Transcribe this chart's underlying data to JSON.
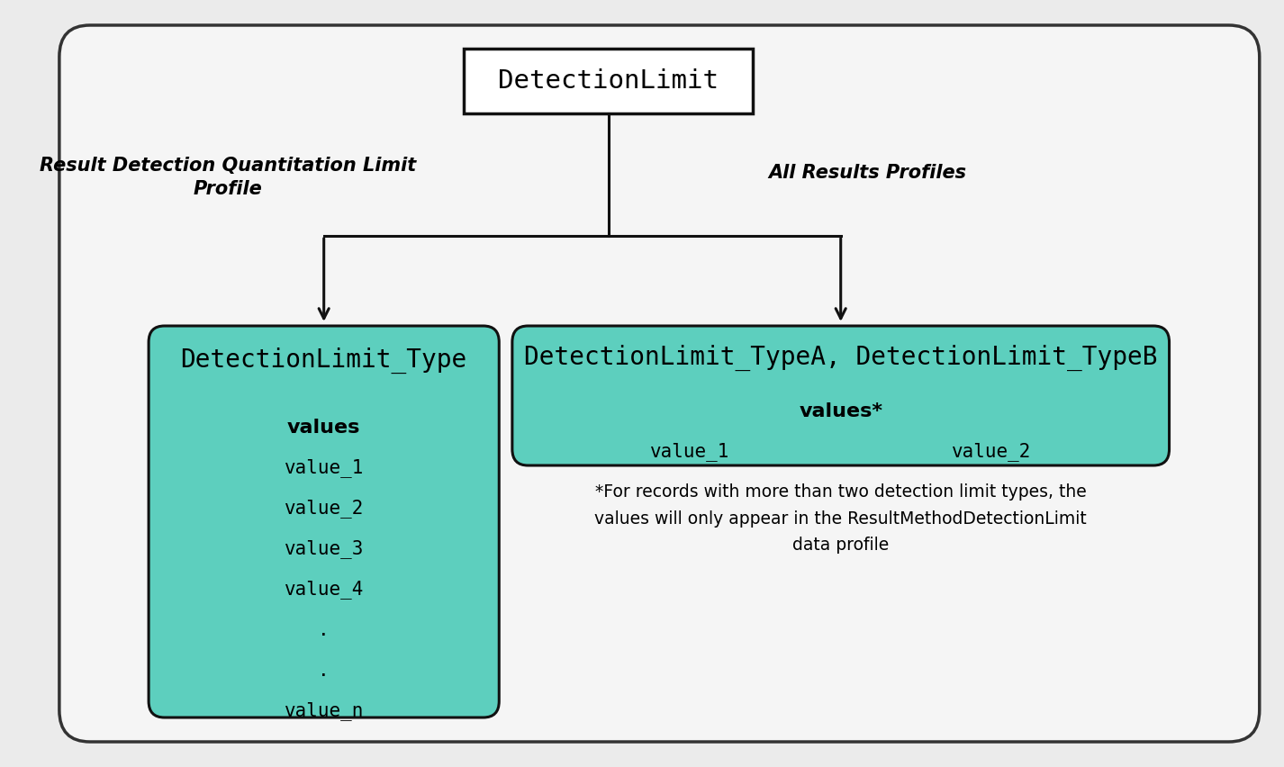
{
  "background_color": "#ebebeb",
  "outer_box_color": "#f5f5f5",
  "outer_box_edge_color": "#333333",
  "teal_color": "#5dcfbe",
  "teal_edge_color": "#111111",
  "root_box_color": "#ffffff",
  "root_box_edge_color": "#111111",
  "root_label": "DetectionLimit",
  "left_label_line1": "Result Detection Quantitation Limit",
  "left_label_line2": "Profile",
  "right_label": "All Results Profiles",
  "left_box_title": "DetectionLimit_Type",
  "left_box_values_header": "values",
  "left_box_values": [
    "value_1",
    "value_2",
    "value_3",
    "value_4",
    ".",
    ".",
    "value_n"
  ],
  "right_box_title": "DetectionLimit_TypeA, DetectionLimit_TypeB",
  "right_box_values_header": "values*",
  "right_box_values_left": "value_1",
  "right_box_values_right": "value_2",
  "footnote": "*For records with more than two detection limit types, the\nvalues will only appear in the ResultMethodDetectionLimit\ndata profile",
  "arrow_color": "#111111",
  "font_family": "monospace"
}
